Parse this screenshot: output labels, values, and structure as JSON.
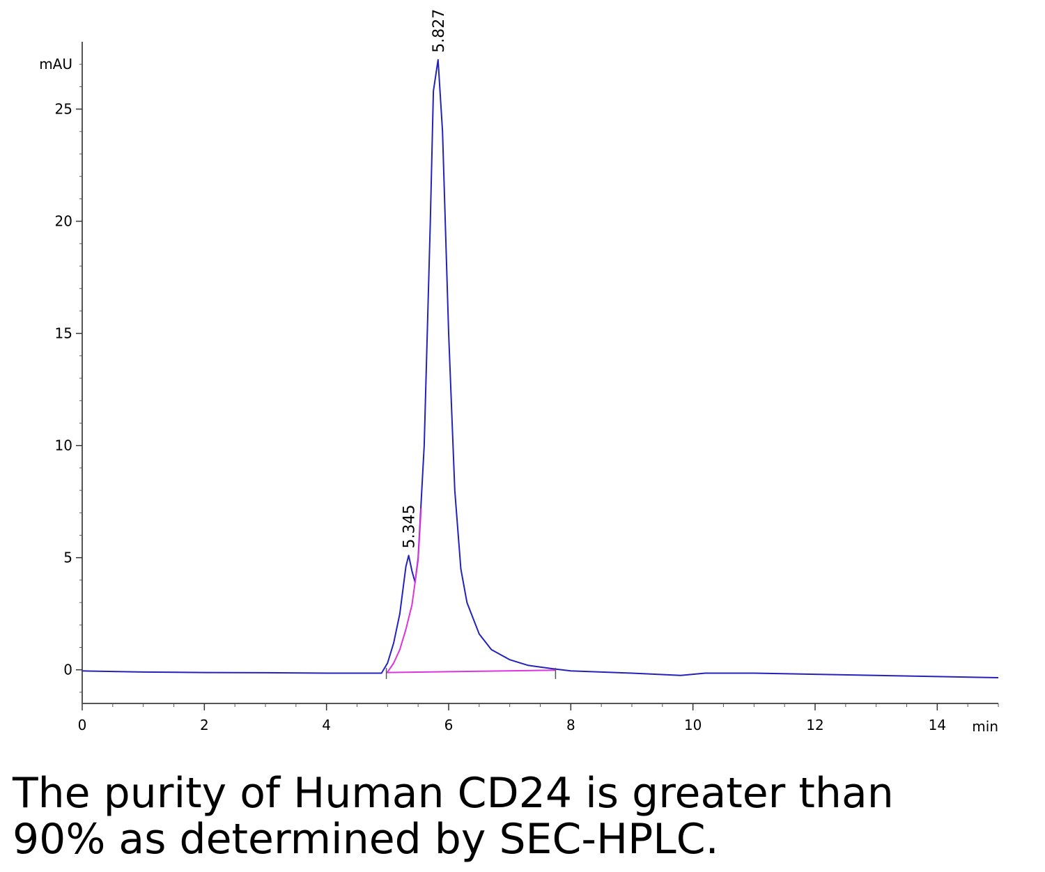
{
  "chart_data": {
    "type": "line",
    "title": "",
    "xlabel": "min",
    "ylabel": "mAU",
    "xlim": [
      0,
      15
    ],
    "ylim": [
      -1.5,
      28
    ],
    "x_ticks": [
      0,
      2,
      4,
      6,
      8,
      10,
      12,
      14
    ],
    "y_ticks": [
      0,
      5,
      10,
      15,
      20,
      25
    ],
    "grid": false,
    "legend": "none",
    "peaks": [
      {
        "label": "5.345",
        "x": 5.345,
        "y": 5.1
      },
      {
        "label": "5.827",
        "x": 5.827,
        "y": 27.2
      }
    ],
    "series": [
      {
        "color": "#2222bb",
        "x": [
          0,
          1,
          2,
          3,
          4,
          4.9,
          5.0,
          5.1,
          5.2,
          5.3,
          5.345,
          5.4,
          5.45,
          5.5,
          5.6,
          5.7,
          5.75,
          5.827,
          5.9,
          6.0,
          6.1,
          6.2,
          6.3,
          6.5,
          6.7,
          7.0,
          7.3,
          7.7,
          8,
          9,
          9.8,
          10,
          10.2,
          11,
          12,
          13,
          14,
          15
        ],
        "y": [
          -0.05,
          -0.1,
          -0.12,
          -0.13,
          -0.15,
          -0.15,
          0.3,
          1.2,
          2.5,
          4.6,
          5.1,
          4.4,
          3.9,
          5.0,
          10.0,
          20.0,
          25.8,
          27.2,
          24.0,
          15.0,
          8.0,
          4.5,
          3.0,
          1.6,
          0.9,
          0.45,
          0.2,
          0.05,
          -0.05,
          -0.15,
          -0.25,
          -0.2,
          -0.15,
          -0.15,
          -0.2,
          -0.25,
          -0.3,
          -0.35
        ]
      },
      {
        "color": "#dd33dd",
        "x": [
          5.0,
          5.1,
          5.2,
          5.3,
          5.4,
          5.5,
          5.55
        ],
        "y": [
          -0.1,
          0.3,
          0.9,
          1.8,
          2.9,
          4.9,
          7.2
        ]
      },
      {
        "color": "#dd33dd",
        "x": [
          4.98,
          7.75
        ],
        "y": [
          -0.12,
          -0.02
        ]
      }
    ]
  },
  "caption": {
    "line1": "The purity of Human CD24 is greater than",
    "line2": "90% as determined by SEC-HPLC."
  }
}
